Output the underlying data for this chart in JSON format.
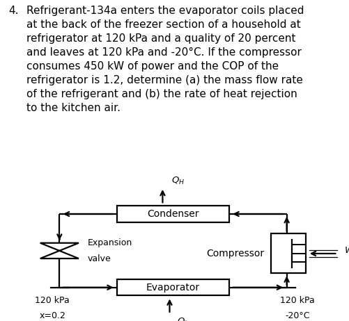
{
  "background_color": "#ffffff",
  "text_color": "#000000",
  "problem_text_lines": [
    "Refrigerant-134a enters the evaporator coils placed",
    "at the back of the freezer section of a household at",
    "refrigerator at 120 kPa and a quality of 20 percent",
    "and leaves at 120 kPa and -20°C. If the compressor",
    "consumes 450 kW of power and the COP of the",
    "refrigerator is 1.2, determine (a) the mass flow rate",
    "of the refrigerant and (b) the rate of heat rejection",
    "to the kitchen air."
  ],
  "condenser_label": "Condenser",
  "evaporator_label": "Evaporator",
  "compressor_label": "Compressor",
  "expansion_line1": "Expansion",
  "expansion_line2": "valve",
  "Q_H_label": "$Q_H$",
  "Q_L_label": "$Q_L$",
  "W_in_label": "$W_{\\mathrm{in}}$",
  "label_left_1": "120 kPa",
  "label_left_2": "x=0.2",
  "label_right_1": "120 kPa",
  "label_right_2": "-20°C"
}
